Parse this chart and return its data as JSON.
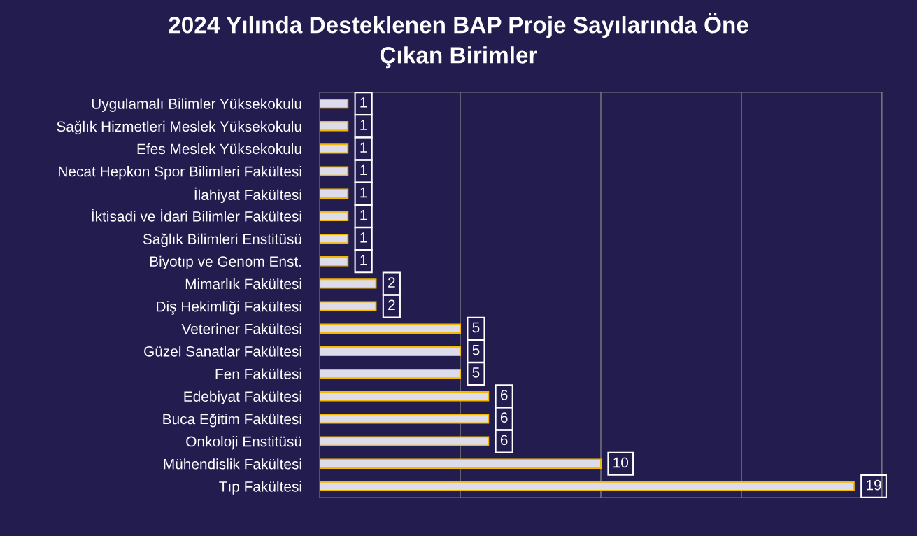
{
  "chart_data": {
    "type": "bar",
    "orientation": "horizontal",
    "title": "2024 Yılında Desteklenen BAP Proje Sayılarında Öne\nÇıkan Birimler",
    "categories": [
      "Uygulamalı Bilimler Yüksekokulu",
      "Sağlık Hizmetleri Meslek Yüksekokulu",
      "Efes Meslek Yüksekokulu",
      "Necat Hepkon Spor Bilimleri Fakültesi",
      "İlahiyat Fakültesi",
      "İktisadi ve İdari Bilimler Fakültesi",
      "Sağlık Bilimleri Enstitüsü",
      "Biyotıp ve Genom Enst.",
      "Mimarlık Fakültesi",
      "Diş Hekimliği Fakültesi",
      "Veteriner Fakültesi",
      "Güzel Sanatlar Fakültesi",
      "Fen Fakültesi",
      "Edebiyat Fakültesi",
      "Buca Eğitim Fakültesi",
      "Onkoloji Enstitüsü",
      "Mühendislik Fakültesi",
      "Tıp Fakültesi"
    ],
    "values": [
      1,
      1,
      1,
      1,
      1,
      1,
      1,
      1,
      2,
      2,
      5,
      5,
      5,
      6,
      6,
      6,
      10,
      19
    ],
    "color": "#dcdcea",
    "xlim": [
      0,
      20
    ],
    "xticks": [
      {
        "value": 0,
        "label": null
      },
      {
        "value": 5,
        "label": null
      },
      {
        "value": 10,
        "label": null
      },
      {
        "value": 15,
        "label": null
      },
      {
        "value": 20,
        "label": null
      }
    ],
    "grid": "x",
    "tick_labels": "y",
    "data_labels": true,
    "legend": false
  }
}
